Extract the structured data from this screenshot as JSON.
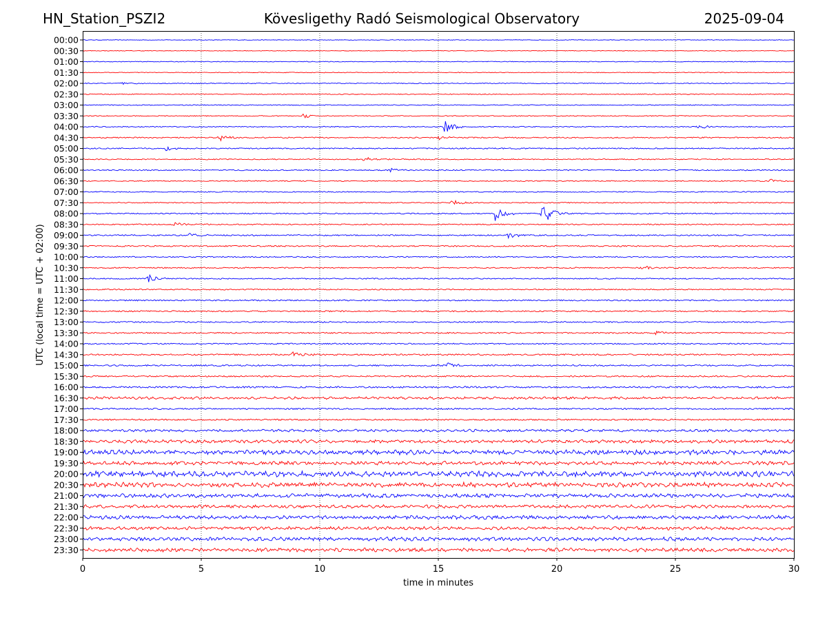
{
  "header": {
    "station": "HN_Station_PSZI2",
    "observatory": "Kövesligethy Radó Seismological Observatory",
    "date": "2025-09-04"
  },
  "colors": {
    "even_trace": "#0000ff",
    "odd_trace": "#ff0000",
    "grid": "#000000"
  },
  "chart_data": {
    "type": "line",
    "title": "Kövesligethy Radó Seismological Observatory",
    "xlabel": "time in minutes",
    "ylabel": "UTC (local time = UTC + 02:00)",
    "xlim": [
      0,
      30
    ],
    "x_ticks": [
      "0",
      "5",
      "10",
      "15",
      "20",
      "25",
      "30"
    ],
    "grid": "vertical dotted lines at 5-minute intervals",
    "rows": [
      "00:00",
      "00:30",
      "01:00",
      "01:30",
      "02:00",
      "02:30",
      "03:00",
      "03:30",
      "04:00",
      "04:30",
      "05:00",
      "05:30",
      "06:00",
      "06:30",
      "07:00",
      "07:30",
      "08:00",
      "08:30",
      "09:00",
      "09:30",
      "10:00",
      "10:30",
      "11:00",
      "11:30",
      "12:00",
      "12:30",
      "13:00",
      "13:30",
      "14:00",
      "14:30",
      "15:00",
      "15:30",
      "16:00",
      "16:30",
      "17:00",
      "17:30",
      "18:00",
      "18:30",
      "19:00",
      "19:30",
      "20:00",
      "20:30",
      "21:00",
      "21:30",
      "22:00",
      "22:30",
      "23:00",
      "23:30"
    ],
    "noise_level": [
      0.4,
      0.4,
      0.5,
      0.5,
      0.6,
      0.6,
      0.6,
      0.6,
      0.7,
      0.8,
      0.8,
      0.7,
      0.8,
      0.7,
      0.7,
      0.7,
      0.8,
      0.8,
      0.9,
      0.9,
      0.8,
      0.8,
      0.8,
      0.8,
      0.9,
      0.9,
      0.9,
      0.9,
      0.9,
      1.0,
      1.0,
      1.0,
      1.2,
      1.4,
      1.0,
      1.0,
      1.4,
      1.8,
      2.6,
      2.0,
      3.0,
      2.6,
      2.2,
      1.8,
      2.0,
      1.8,
      2.0,
      2.0
    ],
    "events": [
      {
        "row": "02:00",
        "minute": 1.7,
        "amplitude": 2
      },
      {
        "row": "03:30",
        "minute": 9.3,
        "amplitude": 3
      },
      {
        "row": "04:00",
        "minute": 15.3,
        "amplitude": 9
      },
      {
        "row": "04:00",
        "minute": 26.0,
        "amplitude": 3
      },
      {
        "row": "04:30",
        "minute": 5.8,
        "amplitude": 5
      },
      {
        "row": "04:30",
        "minute": 15.0,
        "amplitude": 3
      },
      {
        "row": "05:00",
        "minute": 3.5,
        "amplitude": 4
      },
      {
        "row": "05:30",
        "minute": 11.9,
        "amplitude": 3
      },
      {
        "row": "06:00",
        "minute": 13.0,
        "amplitude": 3
      },
      {
        "row": "06:30",
        "minute": 29.0,
        "amplitude": 3
      },
      {
        "row": "07:30",
        "minute": 15.6,
        "amplitude": 4
      },
      {
        "row": "08:00",
        "minute": 17.4,
        "amplitude": 11
      },
      {
        "row": "08:00",
        "minute": 19.4,
        "amplitude": 17
      },
      {
        "row": "08:30",
        "minute": 3.9,
        "amplitude": 3
      },
      {
        "row": "09:00",
        "minute": 4.5,
        "amplitude": 5
      },
      {
        "row": "09:00",
        "minute": 18.0,
        "amplitude": 5
      },
      {
        "row": "10:30",
        "minute": 23.6,
        "amplitude": 4
      },
      {
        "row": "11:00",
        "minute": 2.8,
        "amplitude": 6
      },
      {
        "row": "13:30",
        "minute": 24.2,
        "amplitude": 4
      },
      {
        "row": "14:30",
        "minute": 8.9,
        "amplitude": 6
      },
      {
        "row": "15:00",
        "minute": 15.4,
        "amplitude": 5
      },
      {
        "row": "16:30",
        "minute": 19.5,
        "amplitude": 3
      },
      {
        "row": "22:00",
        "minute": 28.7,
        "amplitude": 3
      }
    ]
  }
}
